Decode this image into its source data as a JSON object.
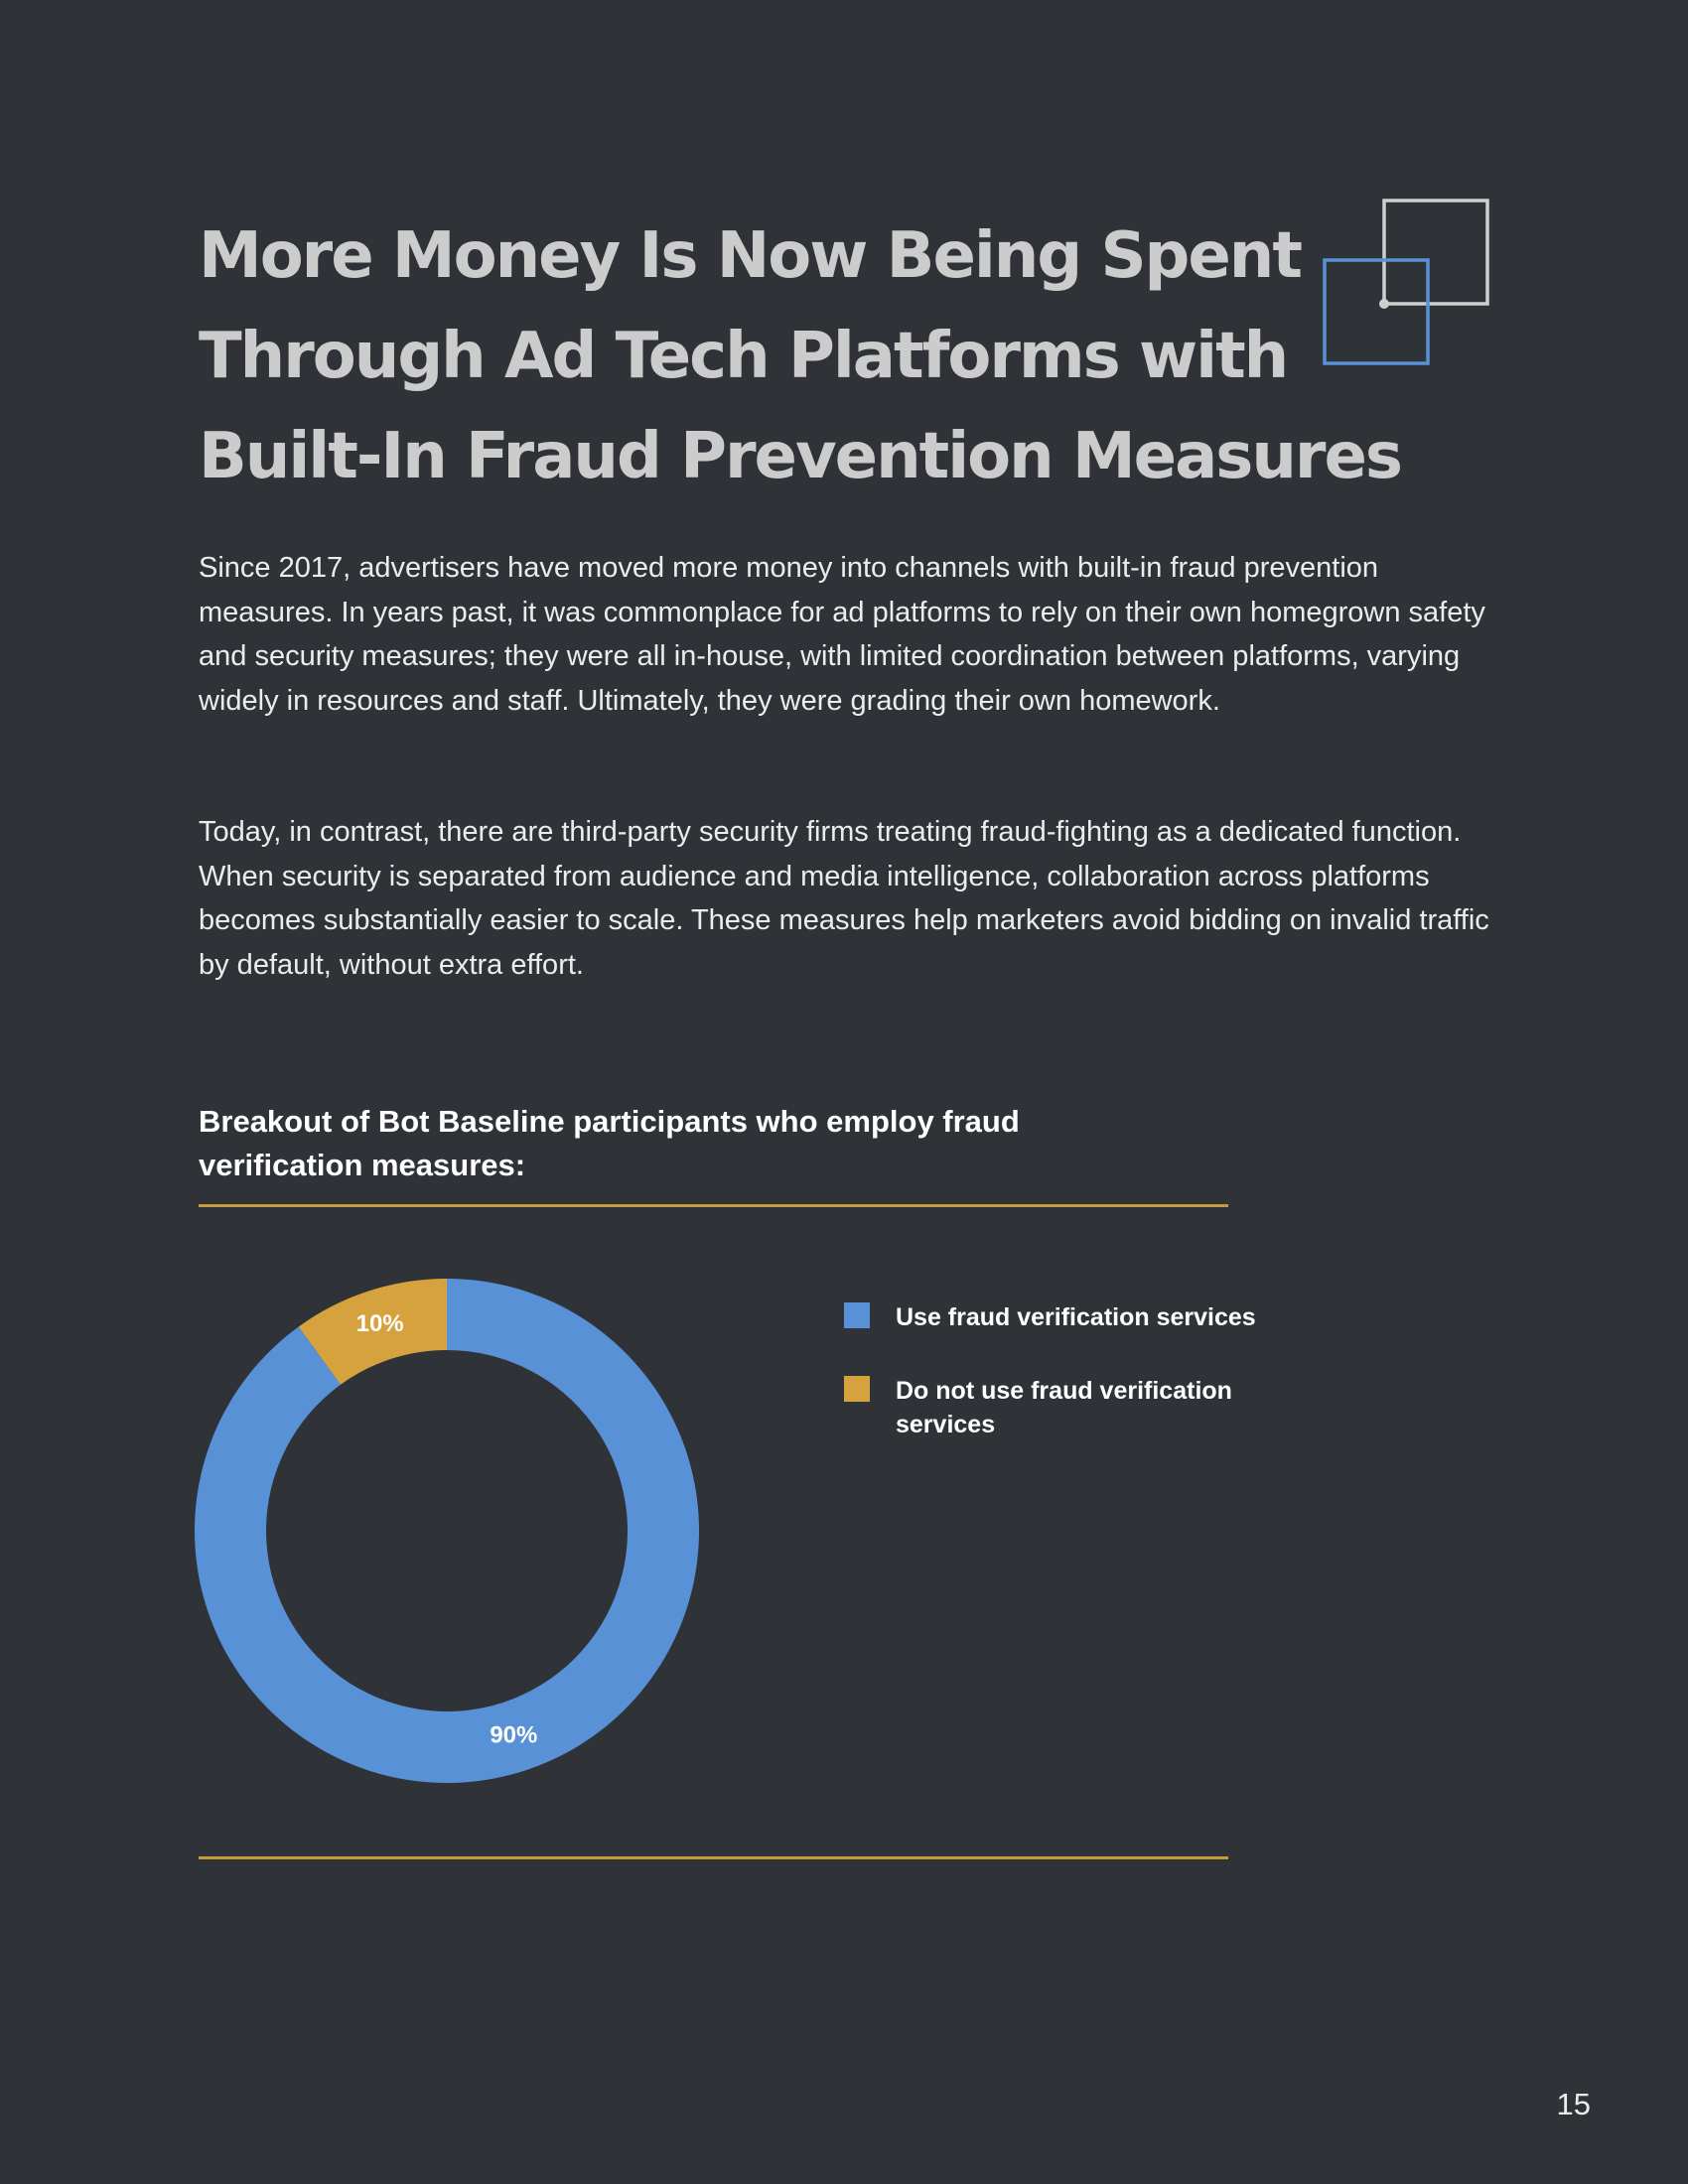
{
  "title_lines": [
    "More Money Is Now Being Spent",
    "Through Ad Tech Platforms with",
    "Built-In Fraud Prevention Measures"
  ],
  "paragraphs": [
    "Since 2017, advertisers have moved more money into channels with built-in fraud prevention measures. In years past, it was commonplace for ad platforms to rely on their own homegrown safety and security measures; they were all in-house, with limited coordination between platforms, varying widely in resources and staff. Ultimately, they were grading their own homework.",
    "Today, in contrast, there are third-party security firms treating fraud-fighting as a dedicated function. When security is separated from audience and media intelligence, collaboration across platforms becomes substantially easier to scale. These measures help marketers avoid bidding on invalid traffic by default, without extra effort."
  ],
  "colors": {
    "background": "#2f3337",
    "accent_blue": "#5891d6",
    "accent_gold": "#d6a23d",
    "rule": "#c99a3c",
    "title": "#cccccc"
  },
  "icons": {
    "decoration": "overlapping-squares-icon"
  },
  "chart_data": {
    "type": "pie",
    "style": "donut",
    "title": "Breakout of Bot Baseline participants who employ fraud verification measures:",
    "slices": [
      {
        "label": "Use fraud verification services",
        "value": 90,
        "display": "90%",
        "color": "#5891d6"
      },
      {
        "label": "Do not use fraud verification services",
        "value": 10,
        "display": "10%",
        "color": "#d6a23d"
      }
    ],
    "legend_position": "right"
  },
  "page_number": "15"
}
